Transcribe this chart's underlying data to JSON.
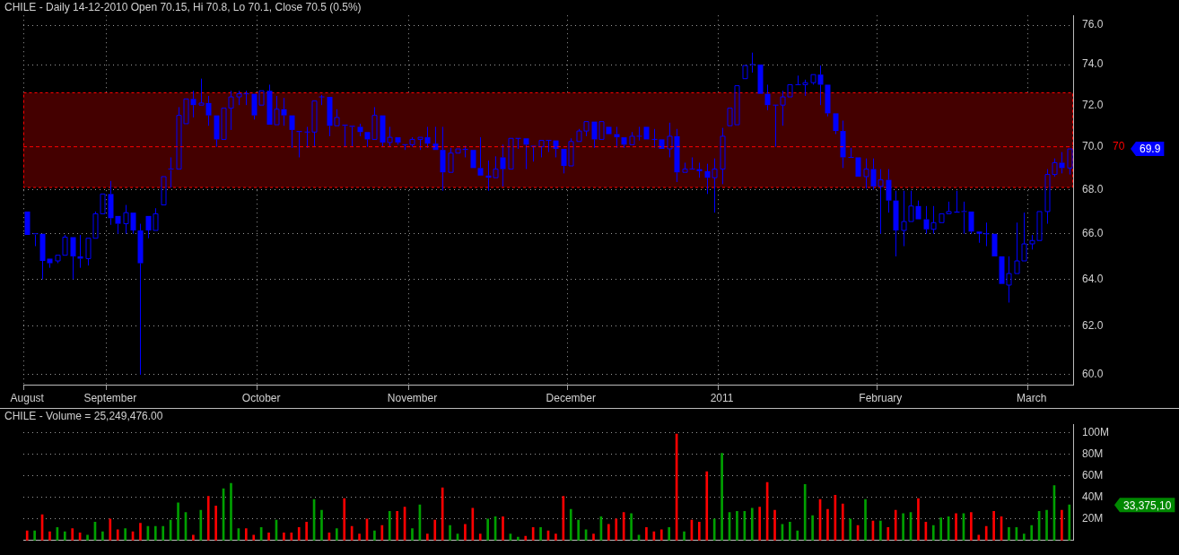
{
  "chart_data": [
    {
      "type": "candlestick",
      "title": "CHILE - Daily 14-12-2010 Open 70.15, Hi 70.8, Lo 70.1, Close 70.5 (0.5%)",
      "color": "#0000ff",
      "log": true,
      "grid": true,
      "categories": [
        "August",
        null,
        null,
        null,
        null,
        null,
        null,
        null,
        null,
        null,
        null,
        "September",
        null,
        null,
        null,
        null,
        null,
        null,
        null,
        null,
        null,
        null,
        null,
        null,
        null,
        null,
        null,
        null,
        null,
        null,
        null,
        "October",
        null,
        null,
        null,
        null,
        null,
        null,
        null,
        null,
        null,
        null,
        null,
        null,
        null,
        null,
        null,
        null,
        null,
        null,
        null,
        "November",
        null,
        null,
        null,
        null,
        null,
        null,
        null,
        null,
        null,
        null,
        null,
        null,
        null,
        null,
        null,
        null,
        null,
        null,
        null,
        null,
        "December",
        null,
        null,
        null,
        null,
        null,
        null,
        null,
        null,
        null,
        null,
        null,
        null,
        null,
        null,
        null,
        null,
        null,
        null,
        null,
        "2011",
        null,
        null,
        null,
        null,
        null,
        null,
        null,
        null,
        null,
        null,
        null,
        null,
        null,
        null,
        null,
        null,
        null,
        null,
        null,
        null,
        "February",
        null,
        null,
        null,
        null,
        null,
        null,
        null,
        null,
        null,
        null,
        null,
        null,
        null,
        null,
        null,
        null,
        null,
        null,
        null,
        "March",
        null,
        null,
        null,
        null,
        null
      ],
      "ohlc": [
        [
          67.0,
          67.0,
          65.95,
          65.95
        ],
        [
          65.95,
          66.0,
          65.45,
          66.0
        ],
        [
          66.0,
          66.0,
          64.0,
          64.8
        ],
        [
          64.9,
          64.9,
          64.5,
          64.7
        ],
        [
          64.8,
          65.05,
          64.7,
          65.05
        ],
        [
          65.05,
          65.95,
          65.05,
          65.85
        ],
        [
          65.85,
          65.85,
          64.0,
          65.0
        ],
        [
          65.0,
          65.95,
          64.5,
          64.9
        ],
        [
          64.9,
          65.8,
          64.6,
          65.8
        ],
        [
          65.8,
          67.0,
          65.8,
          66.9
        ],
        [
          66.9,
          67.8,
          66.9,
          67.8
        ],
        [
          67.8,
          68.4,
          66.4,
          66.7
        ],
        [
          66.8,
          66.8,
          66.0,
          66.45
        ],
        [
          66.45,
          67.3,
          66.0,
          66.95
        ],
        [
          66.95,
          66.95,
          66.0,
          66.15
        ],
        [
          66.15,
          66.45,
          60.0,
          64.7
        ],
        [
          66.8,
          66.8,
          65.8,
          66.15
        ],
        [
          66.15,
          67.15,
          66.15,
          66.9
        ],
        [
          67.3,
          68.6,
          67.3,
          68.6
        ],
        [
          68.9,
          69.5,
          68.1,
          68.95
        ],
        [
          68.95,
          71.9,
          68.95,
          71.5
        ],
        [
          71.1,
          72.3,
          71.1,
          72.3
        ],
        [
          72.3,
          72.7,
          71.4,
          72.0
        ],
        [
          72.0,
          73.3,
          72.0,
          72.1
        ],
        [
          72.1,
          72.45,
          71.0,
          71.5
        ],
        [
          71.5,
          71.5,
          70.0,
          70.35
        ],
        [
          70.35,
          71.85,
          70.35,
          71.85
        ],
        [
          71.85,
          72.7,
          70.8,
          72.4
        ],
        [
          72.4,
          72.7,
          72.0,
          72.55
        ],
        [
          72.55,
          72.7,
          72.0,
          72.55
        ],
        [
          72.55,
          72.55,
          71.3,
          71.5
        ],
        [
          72.0,
          72.7,
          72.0,
          72.7
        ],
        [
          72.7,
          73.0,
          71.05,
          71.05
        ],
        [
          71.05,
          72.45,
          71.0,
          71.8
        ],
        [
          71.8,
          72.35,
          71.0,
          71.5
        ],
        [
          71.5,
          71.5,
          69.95,
          70.8
        ],
        [
          70.75,
          70.75,
          69.5,
          70.7
        ],
        [
          70.7,
          70.95,
          69.95,
          70.7
        ],
        [
          70.7,
          72.2,
          70.0,
          72.2
        ],
        [
          72.4,
          72.5,
          72.0,
          72.4
        ],
        [
          72.4,
          72.45,
          70.5,
          71.0
        ],
        [
          71.0,
          71.8,
          71.0,
          71.4
        ],
        [
          71.05,
          71.05,
          70.0,
          71.0
        ],
        [
          71.0,
          71.0,
          70.0,
          70.95
        ],
        [
          70.95,
          71.1,
          70.5,
          70.7
        ],
        [
          70.7,
          70.7,
          70.0,
          70.35
        ],
        [
          70.35,
          71.9,
          70.35,
          71.5
        ],
        [
          71.5,
          71.5,
          70.0,
          70.2
        ],
        [
          70.2,
          70.95,
          70.0,
          70.45
        ],
        [
          70.45,
          70.45,
          70.1,
          70.2
        ],
        [
          70.1,
          70.1,
          69.85,
          70.1
        ],
        [
          70.1,
          70.45,
          70.0,
          70.35
        ],
        [
          70.35,
          70.45,
          69.85,
          70.45
        ],
        [
          70.45,
          70.95,
          69.95,
          70.15
        ],
        [
          70.15,
          70.95,
          69.85,
          69.85
        ],
        [
          69.85,
          70.95,
          67.95,
          68.8
        ],
        [
          68.8,
          69.95,
          68.75,
          69.7
        ],
        [
          69.7,
          69.9,
          69.7,
          69.9
        ],
        [
          69.9,
          70.05,
          69.5,
          69.85
        ],
        [
          69.85,
          69.85,
          69.0,
          69.0
        ],
        [
          69.0,
          70.45,
          68.6,
          68.65
        ],
        [
          68.65,
          69.35,
          67.95,
          68.55
        ],
        [
          68.55,
          69.55,
          68.55,
          68.95
        ],
        [
          69.5,
          70.1,
          68.15,
          68.95
        ],
        [
          68.95,
          70.4,
          68.95,
          70.4
        ],
        [
          70.4,
          70.45,
          69.9,
          70.4
        ],
        [
          70.4,
          70.4,
          68.95,
          70.1
        ],
        [
          70.05,
          70.05,
          69.3,
          70.0
        ],
        [
          70.0,
          70.3,
          69.5,
          70.3
        ],
        [
          70.3,
          70.3,
          69.75,
          70.3
        ],
        [
          70.3,
          70.3,
          69.5,
          69.9
        ],
        [
          69.9,
          69.9,
          68.75,
          69.1
        ],
        [
          69.1,
          70.4,
          69.1,
          70.25
        ],
        [
          70.25,
          70.85,
          70.25,
          70.75
        ],
        [
          70.75,
          71.2,
          70.5,
          71.2
        ],
        [
          71.2,
          71.2,
          69.95,
          70.35
        ],
        [
          70.35,
          71.25,
          70.35,
          71.2
        ],
        [
          70.95,
          70.95,
          70.6,
          70.6
        ],
        [
          70.6,
          70.95,
          69.95,
          70.45
        ],
        [
          70.45,
          70.45,
          69.95,
          70.1
        ],
        [
          70.1,
          70.7,
          70.1,
          70.5
        ],
        [
          70.5,
          70.95,
          70.3,
          70.5
        ],
        [
          70.95,
          70.95,
          70.3,
          70.35
        ],
        [
          70.35,
          70.85,
          69.95,
          70.35
        ],
        [
          70.35,
          70.4,
          69.9,
          69.9
        ],
        [
          69.9,
          71.15,
          69.5,
          70.5
        ],
        [
          70.5,
          70.85,
          68.35,
          68.8
        ],
        [
          68.8,
          69.25,
          68.75,
          68.95
        ],
        [
          68.95,
          69.5,
          68.9,
          68.95
        ],
        [
          68.95,
          69.25,
          68.55,
          68.85
        ],
        [
          68.85,
          69.2,
          67.8,
          68.55
        ],
        [
          68.55,
          69.45,
          66.95,
          68.95
        ],
        [
          68.95,
          70.9,
          68.25,
          70.5
        ],
        [
          71.0,
          71.9,
          71.0,
          71.85
        ],
        [
          71.05,
          72.95,
          71.05,
          72.95
        ],
        [
          73.3,
          74.0,
          73.3,
          73.95
        ],
        [
          73.95,
          74.6,
          73.6,
          74.0
        ],
        [
          74.0,
          74.0,
          72.55,
          72.55
        ],
        [
          72.55,
          73.0,
          71.75,
          72.0
        ],
        [
          72.0,
          72.0,
          70.0,
          72.0
        ],
        [
          72.0,
          72.7,
          71.0,
          72.4
        ],
        [
          72.4,
          73.0,
          72.4,
          73.0
        ],
        [
          73.0,
          73.45,
          73.0,
          73.0
        ],
        [
          73.0,
          73.25,
          72.45,
          73.1
        ],
        [
          73.1,
          73.5,
          73.0,
          73.5
        ],
        [
          73.5,
          73.95,
          72.0,
          73.0
        ],
        [
          73.0,
          73.0,
          71.45,
          71.6
        ],
        [
          71.6,
          71.6,
          70.6,
          70.75
        ],
        [
          70.75,
          71.25,
          69.0,
          69.5
        ],
        [
          69.5,
          69.95,
          69.5,
          69.5
        ],
        [
          69.5,
          69.5,
          68.6,
          68.6
        ],
        [
          68.6,
          69.45,
          68.05,
          68.95
        ],
        [
          68.95,
          69.45,
          68.0,
          68.15
        ],
        [
          68.15,
          68.95,
          66.0,
          68.45
        ],
        [
          68.45,
          68.95,
          66.95,
          67.5
        ],
        [
          67.5,
          67.95,
          65.0,
          66.15
        ],
        [
          66.15,
          67.95,
          65.45,
          66.55
        ],
        [
          66.55,
          67.95,
          66.5,
          67.25
        ],
        [
          67.25,
          67.5,
          66.65,
          66.65
        ],
        [
          66.65,
          67.25,
          66.0,
          66.2
        ],
        [
          66.2,
          67.25,
          66.0,
          66.5
        ],
        [
          66.5,
          66.9,
          66.5,
          66.9
        ],
        [
          66.9,
          67.45,
          66.9,
          67.0
        ],
        [
          67.0,
          67.95,
          66.9,
          66.95
        ],
        [
          66.95,
          67.45,
          66.0,
          67.0
        ],
        [
          67.0,
          67.0,
          66.0,
          66.1
        ],
        [
          66.1,
          66.1,
          65.6,
          66.0
        ],
        [
          66.0,
          66.5,
          65.45,
          66.0
        ],
        [
          66.0,
          66.0,
          65.0,
          65.0
        ],
        [
          65.0,
          65.0,
          63.75,
          63.8
        ],
        [
          63.75,
          65.0,
          63.0,
          64.25
        ],
        [
          64.25,
          66.5,
          64.25,
          64.8
        ],
        [
          64.8,
          66.95,
          64.8,
          65.55
        ],
        [
          65.55,
          65.95,
          65.3,
          65.7
        ],
        [
          65.7,
          67.0,
          65.7,
          67.0
        ],
        [
          67.0,
          68.95,
          66.45,
          68.7
        ],
        [
          68.7,
          69.45,
          68.6,
          69.25
        ],
        [
          69.25,
          69.75,
          68.75,
          69.0
        ],
        [
          69.0,
          69.9,
          68.7,
          69.9
        ]
      ],
      "ylim": [
        59.6,
        76.5
      ],
      "yticks": [
        {
          "value": 60,
          "label": "60.0"
        },
        {
          "value": 62,
          "label": "62.0"
        },
        {
          "value": 64,
          "label": "64.0"
        },
        {
          "value": 66,
          "label": "66.0"
        },
        {
          "value": 68,
          "label": "68.0"
        },
        {
          "value": 70,
          "label": "70.0"
        },
        {
          "value": 72,
          "label": "72.0"
        },
        {
          "value": 74,
          "label": "74.0"
        },
        {
          "value": 76,
          "label": "76.0"
        }
      ],
      "ref_lines": [
        {
          "axis": "y",
          "value": 70,
          "label": "70",
          "color": "#ff0000",
          "line_style": "dashed"
        }
      ],
      "bands": [
        {
          "axis": "y",
          "from": 68.1,
          "to": 72.6,
          "color": "#440000"
        }
      ],
      "annotations": [
        "69.9"
      ]
    },
    {
      "type": "bar",
      "title": "CHILE - Volume = 25,249,476.00",
      "grid": true,
      "tick_labels": "y",
      "categories": [
        null,
        null,
        null,
        null,
        null,
        null,
        null,
        null,
        null,
        null,
        null,
        null,
        null,
        null,
        null,
        null,
        null,
        null,
        null,
        null,
        null,
        null,
        null,
        null,
        null,
        null,
        null,
        null,
        null,
        null,
        null,
        null,
        null,
        null,
        null,
        null,
        null,
        null,
        null,
        null,
        null,
        null,
        null,
        null,
        null,
        null,
        null,
        null,
        null,
        null,
        null,
        null,
        null,
        null,
        null,
        null,
        null,
        null,
        null,
        null,
        null,
        null,
        null,
        null,
        null,
        null,
        null,
        null,
        null,
        null,
        null,
        null,
        null,
        null,
        null,
        null,
        null,
        null,
        null,
        null,
        null,
        null,
        null,
        null,
        null,
        null,
        null,
        null,
        null,
        null,
        null,
        null,
        null,
        null,
        null,
        null,
        null,
        null,
        null,
        null,
        null,
        null,
        null,
        null,
        null,
        null,
        null,
        null,
        null,
        null,
        null,
        null,
        null,
        null,
        null,
        null,
        null,
        null,
        null,
        null,
        null,
        null,
        null,
        null,
        null,
        null,
        null,
        null,
        null,
        null,
        null,
        null,
        null,
        null,
        null,
        null,
        null,
        null,
        null
      ],
      "values": [
        9,
        9,
        24,
        8,
        12,
        8,
        11,
        7,
        5,
        17,
        8,
        20,
        10,
        11,
        8,
        16,
        13,
        13,
        13,
        19,
        35,
        26,
        5,
        28,
        41,
        32,
        48,
        53,
        11,
        11,
        5,
        12,
        7,
        19,
        7,
        7,
        12,
        17,
        38,
        28,
        7,
        11,
        39,
        13,
        6,
        20,
        9,
        14,
        27,
        27,
        31,
        11,
        33,
        6,
        19,
        49,
        14,
        6,
        15,
        30,
        6,
        20,
        22,
        22,
        6,
        3,
        4,
        12,
        12,
        9,
        6,
        41,
        29,
        19,
        10,
        6,
        22,
        15,
        20,
        26,
        25,
        5,
        12,
        8,
        10,
        12,
        99,
        8,
        19,
        17,
        64,
        20,
        81,
        26,
        27,
        27,
        30,
        31,
        54,
        28,
        15,
        17,
        9,
        52,
        23,
        38,
        29,
        42,
        34,
        20,
        14,
        38,
        18,
        18,
        12,
        28,
        25,
        26,
        39,
        17,
        14,
        21,
        22,
        25,
        25,
        26,
        5,
        13,
        27,
        22,
        12,
        12,
        6,
        14,
        27,
        28,
        51,
        28,
        33
      ],
      "colors": [
        "#ff0000",
        "#00a000",
        "#ff0000",
        "#ff0000",
        "#00a000",
        "#00a000",
        "#ff0000",
        "#ff0000",
        "#00a000",
        "#00a000",
        "#00a000",
        "#ff0000",
        "#ff0000",
        "#00a000",
        "#ff0000",
        "#ff0000",
        "#00a000",
        "#00a000",
        "#00a000",
        "#00a000",
        "#00a000",
        "#00a000",
        "#ff0000",
        "#00a000",
        "#ff0000",
        "#ff0000",
        "#00a000",
        "#00a000",
        "#00a000",
        "#ff0000",
        "#ff0000",
        "#00a000",
        "#ff0000",
        "#00a000",
        "#ff0000",
        "#ff0000",
        "#ff0000",
        "#ff0000",
        "#00a000",
        "#00a000",
        "#ff0000",
        "#00a000",
        "#ff0000",
        "#ff0000",
        "#ff0000",
        "#ff0000",
        "#00a000",
        "#ff0000",
        "#00a000",
        "#ff0000",
        "#ff0000",
        "#00a000",
        "#00a000",
        "#ff0000",
        "#ff0000",
        "#ff0000",
        "#00a000",
        "#00a000",
        "#ff0000",
        "#ff0000",
        "#ff0000",
        "#00a000",
        "#00a000",
        "#ff0000",
        "#00a000",
        "#00a000",
        "#ff0000",
        "#ff0000",
        "#00a000",
        "#ff0000",
        "#ff0000",
        "#ff0000",
        "#00a000",
        "#00a000",
        "#00a000",
        "#ff0000",
        "#00a000",
        "#ff0000",
        "#ff0000",
        "#ff0000",
        "#00a000",
        "#00a000",
        "#ff0000",
        "#ff0000",
        "#ff0000",
        "#00a000",
        "#ff0000",
        "#00a000",
        "#ff0000",
        "#ff0000",
        "#ff0000",
        "#00a000",
        "#00a000",
        "#00a000",
        "#00a000",
        "#00a000",
        "#00a000",
        "#ff0000",
        "#ff0000",
        "#ff0000",
        "#00a000",
        "#00a000",
        "#00a000",
        "#00a000",
        "#00a000",
        "#ff0000",
        "#ff0000",
        "#ff0000",
        "#ff0000",
        "#00a000",
        "#ff0000",
        "#00a000",
        "#ff0000",
        "#00a000",
        "#ff0000",
        "#ff0000",
        "#00a000",
        "#00a000",
        "#ff0000",
        "#ff0000",
        "#00a000",
        "#00a000",
        "#00a000",
        "#ff0000",
        "#00a000",
        "#ff0000",
        "#ff0000",
        "#ff0000",
        "#ff0000",
        "#ff0000",
        "#00a000",
        "#00a000",
        "#00a000",
        "#00a000",
        "#00a000",
        "#00a000",
        "#00a000",
        "#ff0000",
        "#00a000"
      ],
      "ylim": [
        0,
        108
      ],
      "yticks": [
        {
          "value": 20,
          "label": "20M"
        },
        {
          "value": 40,
          "label": "40M"
        },
        {
          "value": 60,
          "label": "60M"
        },
        {
          "value": 80,
          "label": "80M"
        },
        {
          "value": 100,
          "label": "100M"
        }
      ],
      "annotations": [
        "33,375,10"
      ]
    }
  ]
}
